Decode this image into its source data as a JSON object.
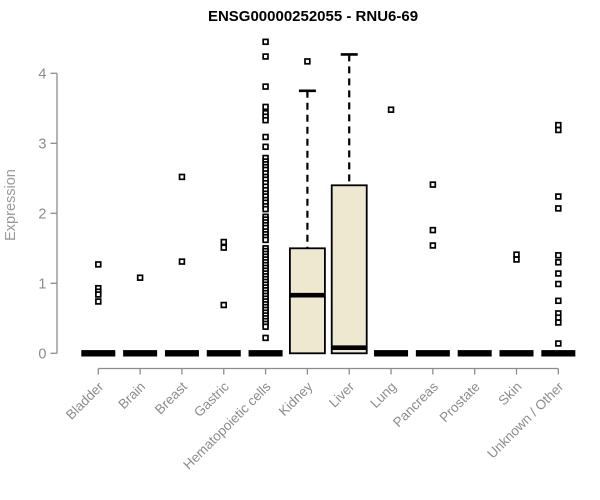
{
  "chart_data": {
    "type": "boxplot",
    "title": "ENSG00000252055 - RNU6-69",
    "ylabel": "Expression",
    "ylim": [
      0,
      4.5
    ],
    "yticks": [
      0,
      1,
      2,
      3,
      4
    ],
    "grid": false,
    "legend": "none",
    "categories": [
      "Bladder",
      "Brain",
      "Breast",
      "Gastric",
      "Hematopoietic cells",
      "Kidney",
      "Liver",
      "Lung",
      "Pancreas",
      "Prostate",
      "Skin",
      "Unknown / Other"
    ],
    "boxes": [
      {
        "category": "Bladder",
        "q1": 0,
        "median": 0,
        "q3": 0,
        "whisker_low": 0,
        "whisker_high": 0,
        "outliers": [
          1.27,
          0.93,
          0.88,
          0.84,
          0.74
        ]
      },
      {
        "category": "Brain",
        "q1": 0,
        "median": 0,
        "q3": 0,
        "whisker_low": 0,
        "whisker_high": 0,
        "outliers": [
          1.08
        ]
      },
      {
        "category": "Breast",
        "q1": 0,
        "median": 0,
        "q3": 0,
        "whisker_low": 0,
        "whisker_high": 0,
        "outliers": [
          2.52,
          1.31
        ]
      },
      {
        "category": "Gastric",
        "q1": 0,
        "median": 0,
        "q3": 0,
        "whisker_low": 0,
        "whisker_high": 0,
        "outliers": [
          1.59,
          1.51,
          0.69
        ]
      },
      {
        "category": "Hematopoietic cells",
        "q1": 0,
        "median": 0,
        "q3": 0,
        "whisker_low": 0,
        "whisker_high": 0,
        "outliers": [
          4.45,
          4.24,
          3.81,
          3.52,
          3.43,
          3.38,
          3.33,
          3.09,
          2.95,
          2.79,
          2.74,
          2.7,
          2.66,
          2.62,
          2.57,
          2.52,
          2.48,
          2.43,
          2.38,
          2.33,
          2.28,
          2.24,
          2.19,
          2.15,
          2.1,
          2.06,
          1.95,
          1.91,
          1.87,
          1.83,
          1.79,
          1.74,
          1.7,
          1.66,
          1.62,
          1.5,
          1.46,
          1.42,
          1.38,
          1.34,
          1.3,
          1.26,
          1.22,
          1.18,
          1.14,
          1.1,
          1.06,
          1.02,
          0.98,
          0.94,
          0.9,
          0.86,
          0.82,
          0.78,
          0.74,
          0.7,
          0.66,
          0.62,
          0.58,
          0.54,
          0.5,
          0.46,
          0.42,
          0.38,
          0.22
        ]
      },
      {
        "category": "Kidney",
        "q1": 0.0,
        "median": 0.83,
        "q3": 1.5,
        "whisker_low": 0.0,
        "whisker_high": 3.75,
        "outliers": [
          4.17
        ]
      },
      {
        "category": "Liver",
        "q1": 0.0,
        "median": 0.08,
        "q3": 2.4,
        "whisker_low": 0.0,
        "whisker_high": 4.27,
        "outliers": []
      },
      {
        "category": "Lung",
        "q1": 0,
        "median": 0,
        "q3": 0,
        "whisker_low": 0,
        "whisker_high": 0,
        "outliers": [
          3.48
        ]
      },
      {
        "category": "Pancreas",
        "q1": 0,
        "median": 0,
        "q3": 0,
        "whisker_low": 0,
        "whisker_high": 0,
        "outliers": [
          2.41,
          1.76,
          1.54
        ]
      },
      {
        "category": "Prostate",
        "q1": 0,
        "median": 0,
        "q3": 0,
        "whisker_low": 0,
        "whisker_high": 0,
        "outliers": []
      },
      {
        "category": "Skin",
        "q1": 0,
        "median": 0,
        "q3": 0,
        "whisker_low": 0,
        "whisker_high": 0,
        "outliers": [
          1.41,
          1.34
        ]
      },
      {
        "category": "Unknown / Other",
        "q1": 0,
        "median": 0,
        "q3": 0,
        "whisker_low": 0,
        "whisker_high": 0,
        "outliers": [
          3.26,
          3.19,
          2.24,
          2.07,
          1.4,
          1.3,
          1.14,
          0.99,
          0.75,
          0.57,
          0.51,
          0.44,
          0.14
        ]
      }
    ],
    "colors": {
      "box_fill": "#ede8cf",
      "box_stroke": "#000000",
      "median": "#000000",
      "whisker": "#000000",
      "outlier_fill": "#ffffff",
      "axis": "#8c8c8c",
      "ylabel_color": "#999999",
      "title_color": "#000000",
      "background": "#ffffff"
    }
  }
}
